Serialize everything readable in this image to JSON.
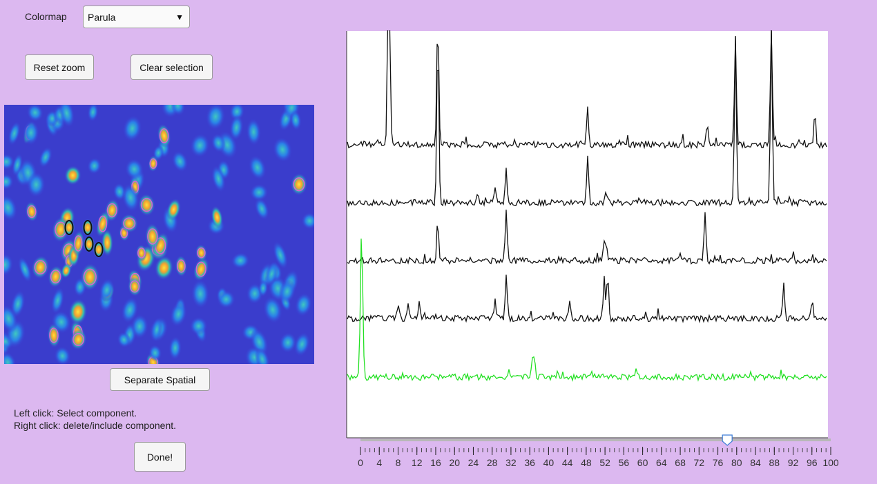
{
  "controls": {
    "colormap_label": "Colormap",
    "colormap_value": "Parula",
    "reset_zoom": "Reset zoom",
    "clear_selection": "Clear selection",
    "separate_spatial": "Separate Spatial",
    "done": "Done!"
  },
  "instructions": [
    "Left click: Select component.",
    "Right click: delete/include component."
  ],
  "slider": {
    "min": 0,
    "max": 100,
    "value": 78,
    "labels": [
      0,
      4,
      8,
      12,
      16,
      20,
      24,
      28,
      32,
      36,
      40,
      44,
      48,
      52,
      56,
      60,
      64,
      68,
      72,
      76,
      80,
      84,
      88,
      92,
      96,
      100
    ]
  }
}
